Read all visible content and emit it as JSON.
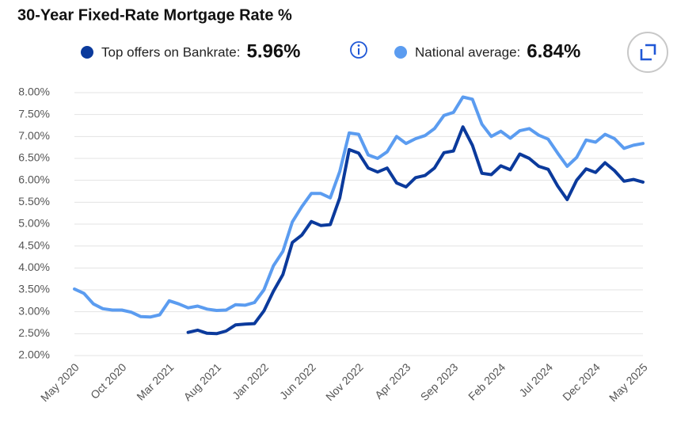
{
  "chart_data": {
    "type": "line",
    "title": "30-Year Fixed-Rate Mortgage Rate %",
    "categories": [
      "May 2020",
      null,
      null,
      null,
      null,
      "Oct 2020",
      null,
      null,
      null,
      null,
      "Mar 2021",
      null,
      null,
      null,
      null,
      "Aug 2021",
      null,
      null,
      null,
      null,
      "Jan 2022",
      null,
      null,
      null,
      null,
      "Jun 2022",
      null,
      null,
      null,
      null,
      "Nov 2022",
      null,
      null,
      null,
      null,
      "Apr 2023",
      null,
      null,
      null,
      null,
      "Sep 2023",
      null,
      null,
      null,
      null,
      "Feb 2024",
      null,
      null,
      null,
      null,
      "Jul 2024",
      null,
      null,
      null,
      null,
      "Dec 2024",
      null,
      null,
      null,
      null,
      "May 2025"
    ],
    "series": [
      {
        "name": "Top offers on Bankrate:",
        "latest_label": "5.96%",
        "color": "#0b3a9c",
        "values": [
          null,
          null,
          null,
          null,
          null,
          null,
          null,
          null,
          null,
          null,
          null,
          null,
          2.53,
          2.58,
          2.51,
          2.5,
          2.56,
          2.7,
          2.72,
          2.73,
          3.02,
          3.47,
          3.85,
          4.58,
          4.75,
          5.06,
          4.97,
          4.99,
          5.6,
          6.7,
          6.62,
          6.28,
          6.19,
          6.28,
          5.94,
          5.85,
          6.06,
          6.11,
          6.28,
          6.63,
          6.67,
          7.22,
          6.8,
          6.16,
          6.13,
          6.33,
          6.24,
          6.6,
          6.5,
          6.32,
          6.25,
          5.87,
          5.56,
          6.0,
          6.26,
          6.18,
          6.4,
          6.22,
          5.98,
          6.02,
          5.96
        ]
      },
      {
        "name": "National average:",
        "latest_label": "6.84%",
        "color": "#5b9cf0",
        "values": [
          3.52,
          3.42,
          3.18,
          3.07,
          3.04,
          3.04,
          2.99,
          2.89,
          2.88,
          2.93,
          3.25,
          3.18,
          3.09,
          3.13,
          3.06,
          3.03,
          3.04,
          3.16,
          3.15,
          3.21,
          3.5,
          4.05,
          4.38,
          5.05,
          5.4,
          5.7,
          5.7,
          5.6,
          6.2,
          7.08,
          7.05,
          6.58,
          6.5,
          6.65,
          7.0,
          6.84,
          6.95,
          7.02,
          7.18,
          7.48,
          7.55,
          7.9,
          7.85,
          7.28,
          7.0,
          7.12,
          6.96,
          7.13,
          7.18,
          7.03,
          6.94,
          6.62,
          6.32,
          6.52,
          6.92,
          6.87,
          7.05,
          6.95,
          6.73,
          6.8,
          6.84
        ]
      }
    ],
    "ylim": [
      2,
      8
    ],
    "yticks": [
      {
        "value": 2,
        "label": "2.00%"
      },
      {
        "value": 2.5,
        "label": "2.50%"
      },
      {
        "value": 3,
        "label": "3.00%"
      },
      {
        "value": 3.5,
        "label": "3.50%"
      },
      {
        "value": 4,
        "label": "4.00%"
      },
      {
        "value": 4.5,
        "label": "4.50%"
      },
      {
        "value": 5,
        "label": "5.00%"
      },
      {
        "value": 5.5,
        "label": "5.50%"
      },
      {
        "value": 6,
        "label": "6.00%"
      },
      {
        "value": 6.5,
        "label": "6.50%"
      },
      {
        "value": 7,
        "label": "7.00%"
      },
      {
        "value": 7.5,
        "label": "7.50%"
      },
      {
        "value": 8,
        "label": "8.00%"
      }
    ],
    "grid": true
  }
}
